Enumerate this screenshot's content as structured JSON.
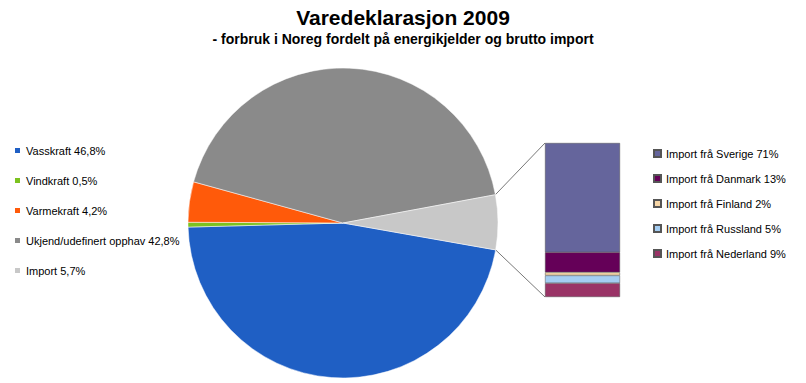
{
  "chart_data": [
    {
      "type": "pie",
      "title": "Varedeklarasjon 2009",
      "subtitle": "- forbruk i Noreg fordelt på energikjelder og brutto import",
      "categories": [
        "Vasskraft 46,8%",
        "Vindkraft 0,5%",
        "Varmekraft 4,2%",
        "Ukjend/udefinert opphav 42,8%",
        "Import 5,7%"
      ],
      "values": [
        46.8,
        0.5,
        4.2,
        42.8,
        5.7
      ],
      "colors": [
        "#1f5fc4",
        "#7cc21f",
        "#ff5a0a",
        "#8a8a8a",
        "#c8c8c8"
      ],
      "legend": "left"
    },
    {
      "type": "bar",
      "stacked": true,
      "series": [
        {
          "name": "Import frå Sverige 71%",
          "color": "#65659c",
          "values": [
            71
          ]
        },
        {
          "name": "Import frå Danmark 13%",
          "color": "#650058",
          "values": [
            13
          ]
        },
        {
          "name": "Import frå Finland 2%",
          "color": "#f7d6a6",
          "values": [
            2
          ]
        },
        {
          "name": "Import frå Russland 5%",
          "color": "#a4cdf2",
          "values": [
            5
          ]
        },
        {
          "name": "Import frå Nederland 9%",
          "color": "#993366",
          "values": [
            9
          ]
        }
      ],
      "ylim": [
        0,
        100
      ],
      "tick_labels": false,
      "legend": "right"
    }
  ]
}
